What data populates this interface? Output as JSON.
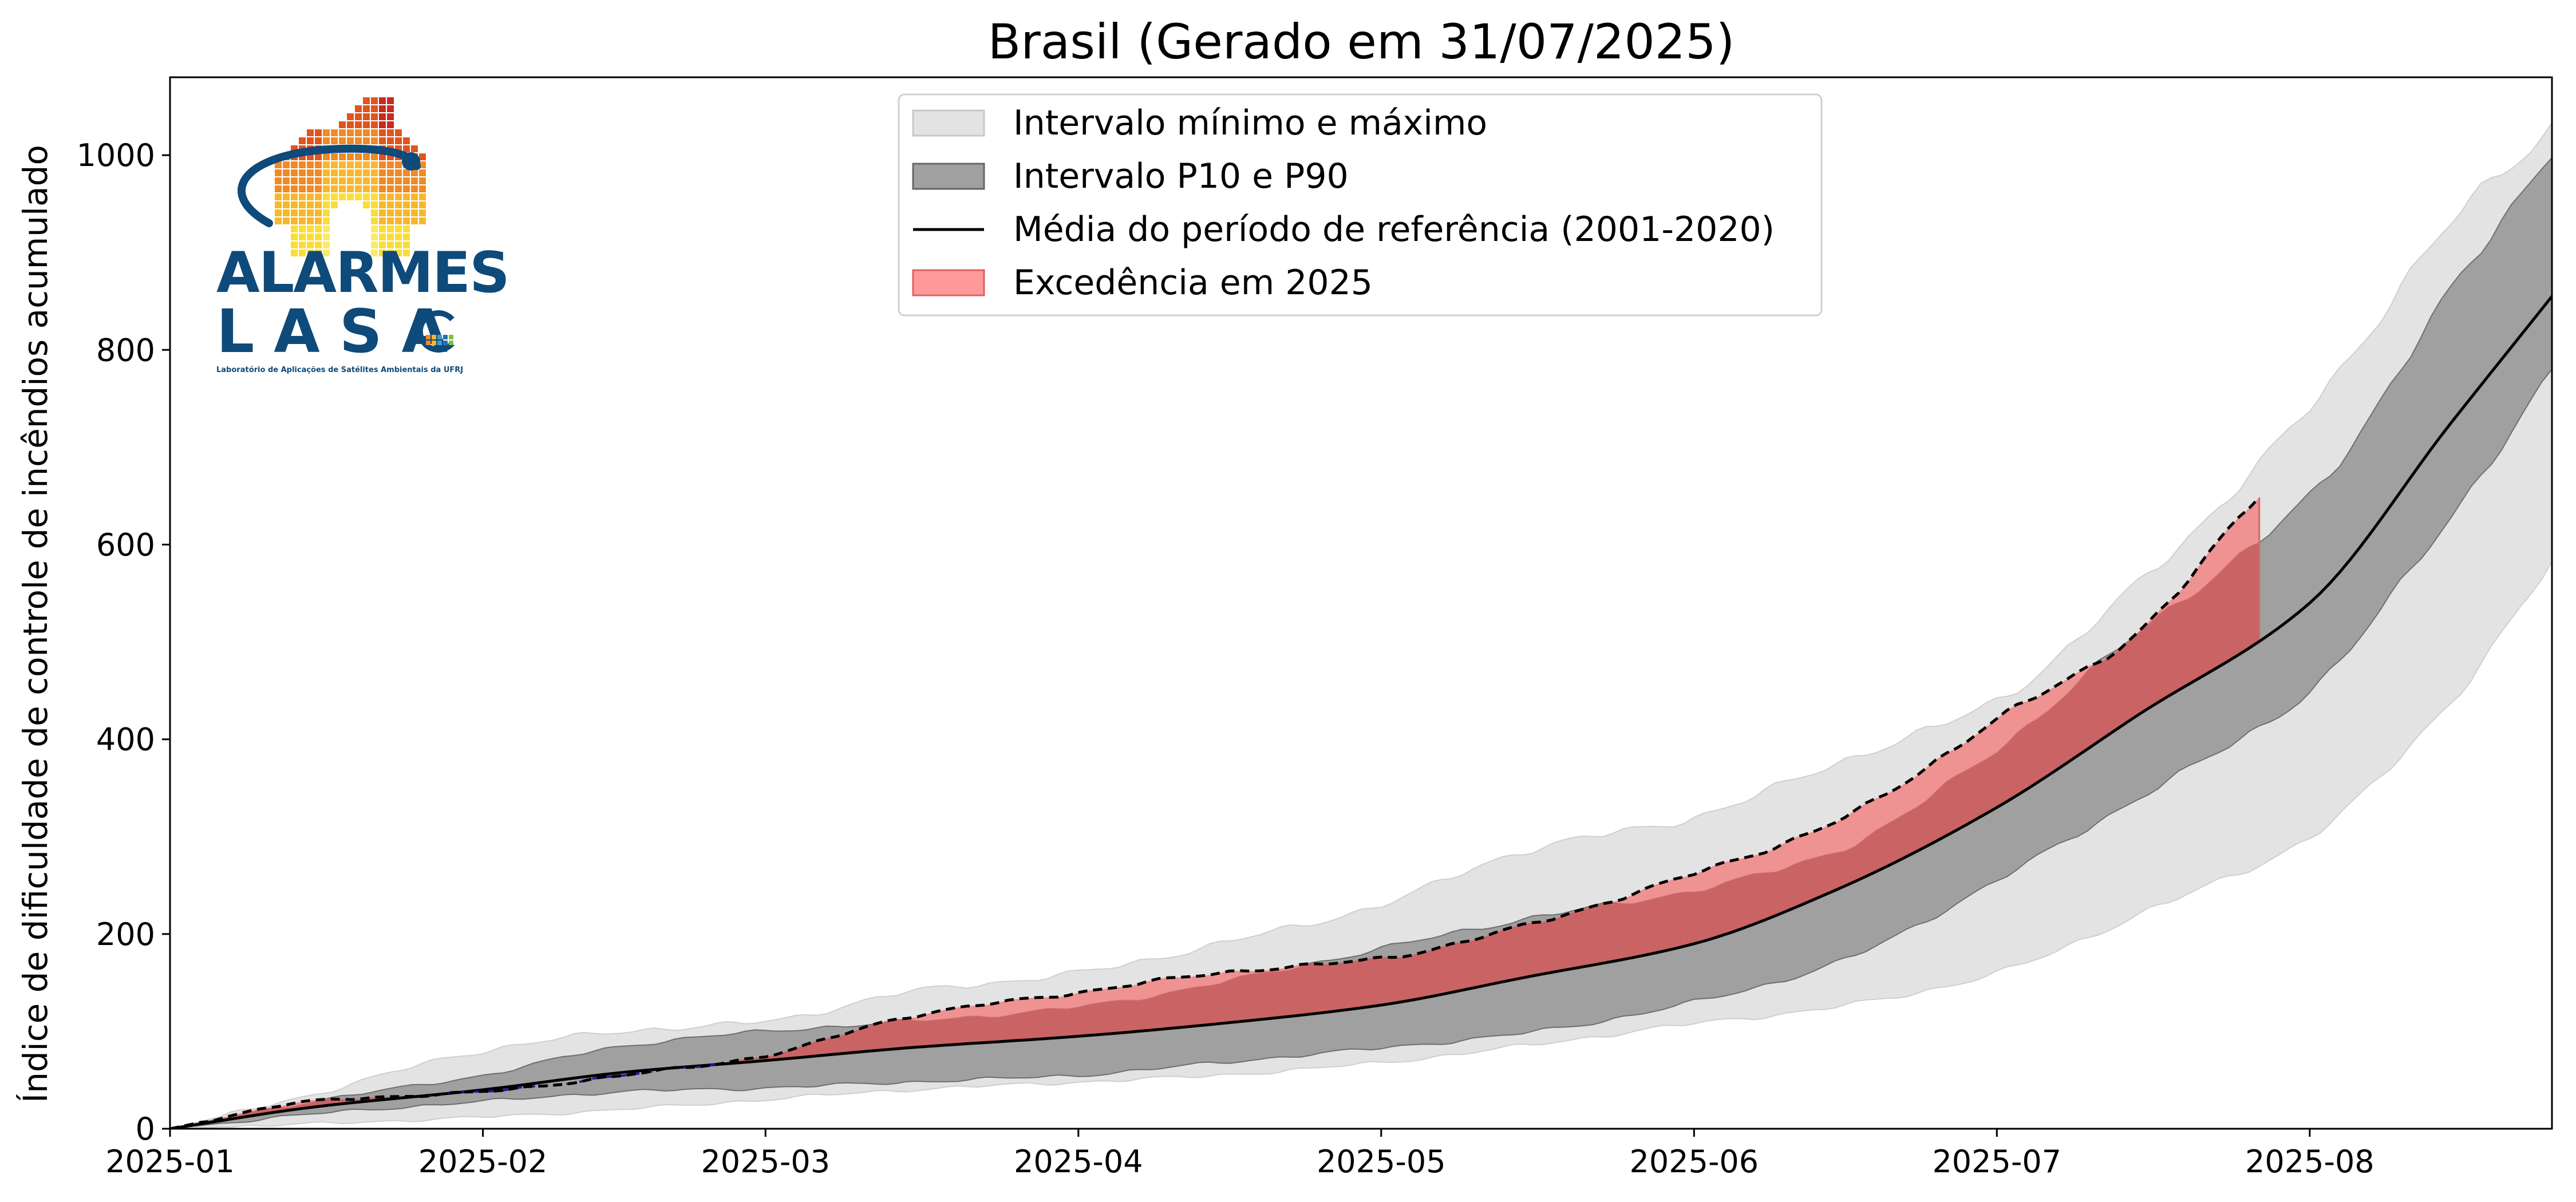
{
  "chart_data": {
    "type": "area",
    "title": "Brasil (Gerado em 31/07/2025)",
    "ylabel": "Índice de dificuldade de controle de incêndios acumulado",
    "xlabel": "",
    "xlim": [
      "2025-01-01",
      "2025-08-25"
    ],
    "ylim": [
      0,
      1080
    ],
    "xticks": [
      {
        "date": "2025-01-01",
        "label": "2025-01"
      },
      {
        "date": "2025-02-01",
        "label": "2025-02"
      },
      {
        "date": "2025-03-01",
        "label": "2025-03"
      },
      {
        "date": "2025-04-01",
        "label": "2025-04"
      },
      {
        "date": "2025-05-01",
        "label": "2025-05"
      },
      {
        "date": "2025-06-01",
        "label": "2025-06"
      },
      {
        "date": "2025-07-01",
        "label": "2025-07"
      },
      {
        "date": "2025-08-01",
        "label": "2025-08"
      }
    ],
    "yticks": [
      0,
      200,
      400,
      600,
      800,
      1000
    ],
    "grid": false,
    "legend_position": "top-center",
    "legend": [
      {
        "label": "Intervalo mínimo e máximo",
        "kind": "patch",
        "color": "#e3e3e3",
        "edge": "#c8c8c8"
      },
      {
        "label": "Intervalo P10 e P90",
        "kind": "patch",
        "color": "#a0a0a0",
        "edge": "#666666"
      },
      {
        "label": "Média do período de referência (2001-2020)",
        "kind": "line",
        "color": "#000000"
      },
      {
        "label": "Excedência em 2025",
        "kind": "patch",
        "color": "#ff9a9a",
        "edge": "#e06060"
      }
    ],
    "colors": {
      "minmax_fill": "#e3e3e3",
      "minmax_edge": "#cfcfcf",
      "p10p90_fill": "#a0a0a0",
      "p10p90_edge": "#6e6e6e",
      "mean_line": "#000000",
      "exceed_fill": "#f08080",
      "exceed_overlap": "#c86060",
      "current_line": "#000000",
      "below_line": "#1a1aa0"
    },
    "x": [
      "2025-01-01",
      "2025-01-15",
      "2025-02-01",
      "2025-02-15",
      "2025-03-01",
      "2025-03-15",
      "2025-04-01",
      "2025-04-15",
      "2025-05-01",
      "2025-05-15",
      "2025-06-01",
      "2025-06-15",
      "2025-07-01",
      "2025-07-15",
      "2025-08-01",
      "2025-08-15",
      "2025-08-25"
    ],
    "series": [
      {
        "role": "min",
        "values": [
          0,
          5,
          12,
          20,
          30,
          40,
          48,
          55,
          68,
          85,
          108,
          125,
          160,
          220,
          300,
          440,
          580
        ]
      },
      {
        "role": "max",
        "values": [
          0,
          35,
          80,
          100,
          110,
          140,
          160,
          190,
          230,
          285,
          320,
          375,
          440,
          560,
          740,
          930,
          1030
        ]
      },
      {
        "role": "p10",
        "values": [
          0,
          15,
          28,
          38,
          42,
          48,
          55,
          68,
          83,
          98,
          130,
          170,
          255,
          340,
          450,
          630,
          775
        ]
      },
      {
        "role": "p90",
        "values": [
          0,
          28,
          55,
          85,
          100,
          110,
          125,
          150,
          185,
          215,
          245,
          285,
          390,
          510,
          650,
          860,
          1005
        ]
      },
      {
        "name": "Média do período de referência (2001-2020)",
        "role": "mean",
        "values": [
          0,
          22,
          40,
          58,
          70,
          83,
          95,
          108,
          127,
          155,
          190,
          245,
          330,
          425,
          540,
          725,
          855
        ]
      }
    ],
    "current_2025": {
      "x": [
        "2025-01-01",
        "2025-01-15",
        "2025-02-01",
        "2025-02-15",
        "2025-03-01",
        "2025-03-15",
        "2025-04-01",
        "2025-04-15",
        "2025-05-01",
        "2025-05-15",
        "2025-06-01",
        "2025-06-15",
        "2025-07-01",
        "2025-07-15",
        "2025-07-27"
      ],
      "values": [
        0,
        28,
        38,
        55,
        75,
        115,
        140,
        160,
        175,
        208,
        262,
        315,
        420,
        510,
        653
      ]
    }
  },
  "logo": {
    "name": "ALARMES",
    "org": "LASA",
    "subtitle": "Laboratório de Aplicações de Satélites Ambientais da UFRJ"
  }
}
